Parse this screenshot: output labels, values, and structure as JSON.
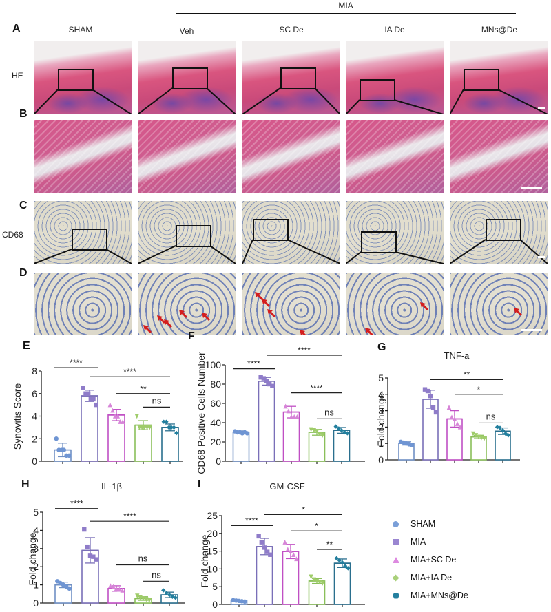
{
  "figure": {
    "group_header": "MIA",
    "columns": [
      "SHAM",
      "Veh",
      "SC De",
      "IA De",
      "MNs@De"
    ],
    "row_labels": {
      "A": "HE",
      "C": "CD68"
    },
    "panel_letters": [
      "A",
      "B",
      "C",
      "D",
      "E",
      "F",
      "G",
      "H",
      "I"
    ]
  },
  "colors": {
    "SHAM": "#6f95d3",
    "MIA": "#8f7cc9",
    "MIA+SC De": "#d785d8",
    "MIA+IA De": "#9fcc6a",
    "MIA+MNs@De": "#227f9e",
    "bar_edges": [
      "#6f8fc4",
      "#7a6fb8",
      "#c04fc4",
      "#8abf5a",
      "#2a6f8e"
    ],
    "arrow": "#d41e1e"
  },
  "legend": {
    "items": [
      {
        "label": "SHAM",
        "marker": "circle"
      },
      {
        "label": "MIA",
        "marker": "square"
      },
      {
        "label": "MIA+SC De",
        "marker": "triangle"
      },
      {
        "label": "MIA+IA De",
        "marker": "diamond"
      },
      {
        "label": "MIA+MNs@De",
        "marker": "hexagon"
      }
    ]
  },
  "chart_data": [
    {
      "id": "E",
      "type": "bar",
      "title": "",
      "xlabel": "",
      "ylabel": "Synovitis Score",
      "categories": [
        "SHAM",
        "MIA",
        "MIA+SC De",
        "MIA+IA De",
        "MIA+MNs@De"
      ],
      "values": [
        1.0,
        5.8,
        4.1,
        3.2,
        3.0
      ],
      "sd": [
        0.6,
        0.5,
        0.5,
        0.4,
        0.3
      ],
      "points": [
        [
          2.0,
          1.0,
          1.0,
          1.0,
          0.5,
          0.5
        ],
        [
          6.5,
          6.0,
          6.0,
          5.5,
          5.5,
          5.0
        ],
        [
          5.0,
          4.5,
          4.0,
          4.0,
          3.5,
          3.5
        ],
        [
          4.0,
          3.0,
          3.0,
          3.0,
          3.0,
          3.0
        ],
        [
          3.5,
          3.5,
          3.0,
          3.0,
          3.0,
          2.5
        ]
      ],
      "ylim": [
        0,
        8
      ],
      "yticks": [
        0,
        2,
        4,
        6,
        8
      ],
      "significance": [
        {
          "from": 0,
          "to": 1,
          "label": "****",
          "level": 8.3
        },
        {
          "from": 1,
          "to": 4,
          "label": "****",
          "level": 7.5
        },
        {
          "from": 2,
          "to": 4,
          "label": "**",
          "level": 6.0
        },
        {
          "from": 3,
          "to": 4,
          "label": "ns",
          "level": 4.8
        }
      ]
    },
    {
      "id": "F",
      "type": "bar",
      "title": "",
      "xlabel": "",
      "ylabel": "CD68 Positive Cells Number",
      "categories": [
        "SHAM",
        "MIA",
        "MIA+SC De",
        "MIA+IA De",
        "MIA+MNs@De"
      ],
      "values": [
        30,
        83,
        51,
        30,
        32
      ],
      "sd": [
        1.5,
        4,
        6,
        3,
        3
      ],
      "points": [
        [
          31,
          30,
          30,
          29,
          30,
          29
        ],
        [
          87,
          86,
          83,
          80,
          78
        ],
        [
          57,
          52,
          46,
          46,
          46
        ],
        [
          33,
          32,
          31,
          28,
          27
        ],
        [
          36,
          34,
          32,
          30,
          29
        ]
      ],
      "ylim": [
        0,
        100
      ],
      "yticks": [
        0,
        20,
        40,
        60,
        80,
        100
      ],
      "significance": [
        {
          "from": 0,
          "to": 1,
          "label": "****",
          "level": 96
        },
        {
          "from": 1,
          "to": 4,
          "label": "****",
          "level": 110
        },
        {
          "from": 2,
          "to": 4,
          "label": "****",
          "level": 71
        },
        {
          "from": 3,
          "to": 4,
          "label": "ns",
          "level": 44
        }
      ]
    },
    {
      "id": "G",
      "type": "bar",
      "title": "TNF-a",
      "xlabel": "",
      "ylabel": "Fold change",
      "categories": [
        "SHAM",
        "MIA",
        "MIA+SC De",
        "MIA+IA De",
        "MIA+MNs@De"
      ],
      "values": [
        1.0,
        3.7,
        2.5,
        1.4,
        1.75
      ],
      "sd": [
        0.1,
        0.55,
        0.5,
        0.1,
        0.2
      ],
      "points": [
        [
          1.1,
          1.05,
          1.0,
          0.95,
          0.9
        ],
        [
          4.3,
          4.2,
          3.9,
          3.2,
          2.9
        ],
        [
          3.2,
          2.6,
          2.5,
          2.2,
          2.0
        ],
        [
          1.6,
          1.5,
          1.4,
          1.35,
          1.3
        ],
        [
          2.0,
          1.95,
          1.8,
          1.6,
          1.5
        ]
      ],
      "ylim": [
        0,
        5
      ],
      "yticks": [
        0,
        1,
        2,
        3,
        4,
        5
      ],
      "significance": [
        {
          "from": 1,
          "to": 4,
          "label": "**",
          "level": 4.9
        },
        {
          "from": 2,
          "to": 4,
          "label": "*",
          "level": 4.0
        },
        {
          "from": 3,
          "to": 4,
          "label": "ns",
          "level": 2.25
        }
      ]
    },
    {
      "id": "H",
      "type": "bar",
      "title": "IL-1β",
      "xlabel": "",
      "ylabel": "Fold change",
      "categories": [
        "SHAM",
        "MIA",
        "MIA+SC De",
        "MIA+IA De",
        "MIA+MNs@De"
      ],
      "values": [
        1.0,
        2.9,
        0.8,
        0.25,
        0.45
      ],
      "sd": [
        0.15,
        0.7,
        0.15,
        0.1,
        0.15
      ],
      "points": [
        [
          1.2,
          1.1,
          1.0,
          0.9,
          0.8
        ],
        [
          4.05,
          3.1,
          2.6,
          2.55,
          2.4
        ],
        [
          0.95,
          0.9,
          0.8,
          0.75,
          0.7
        ],
        [
          0.4,
          0.3,
          0.25,
          0.2,
          0.15
        ],
        [
          0.7,
          0.55,
          0.45,
          0.35,
          0.3
        ]
      ],
      "ylim": [
        0,
        5
      ],
      "yticks": [
        0,
        1,
        2,
        3,
        4,
        5
      ],
      "significance": [
        {
          "from": 0,
          "to": 1,
          "label": "****",
          "level": 5.2
        },
        {
          "from": 1,
          "to": 4,
          "label": "****",
          "level": 4.5
        },
        {
          "from": 2,
          "to": 4,
          "label": "ns",
          "level": 2.1
        },
        {
          "from": 3,
          "to": 4,
          "label": "ns",
          "level": 1.2
        }
      ]
    },
    {
      "id": "I",
      "type": "bar",
      "title": "GM-CSF",
      "xlabel": "",
      "ylabel": "Fold change",
      "categories": [
        "SHAM",
        "MIA",
        "MIA+SC De",
        "MIA+IA De",
        "MIA+MNs@De"
      ],
      "values": [
        1.0,
        16.3,
        14.9,
        6.6,
        11.6
      ],
      "sd": [
        0.2,
        2.3,
        2.0,
        0.7,
        1.2
      ],
      "points": [
        [
          1.2,
          1.1,
          1.0,
          0.9,
          0.8
        ],
        [
          19.2,
          17.5,
          16.0,
          14.8,
          14.0
        ],
        [
          17.5,
          15.5,
          15.0,
          14.0,
          12.8
        ],
        [
          7.8,
          7.0,
          6.6,
          6.2,
          6.0
        ],
        [
          13.0,
          12.4,
          11.8,
          10.8,
          10.2
        ]
      ],
      "ylim": [
        0,
        25
      ],
      "yticks": [
        0,
        5,
        10,
        15,
        20,
        25
      ],
      "significance": [
        {
          "from": 0,
          "to": 1,
          "label": "****",
          "level": 22.2
        },
        {
          "from": 1,
          "to": 4,
          "label": "*",
          "level": 25.3
        },
        {
          "from": 2,
          "to": 4,
          "label": "*",
          "level": 20.7
        },
        {
          "from": 3,
          "to": 4,
          "label": "**",
          "level": 15.5
        }
      ]
    }
  ]
}
